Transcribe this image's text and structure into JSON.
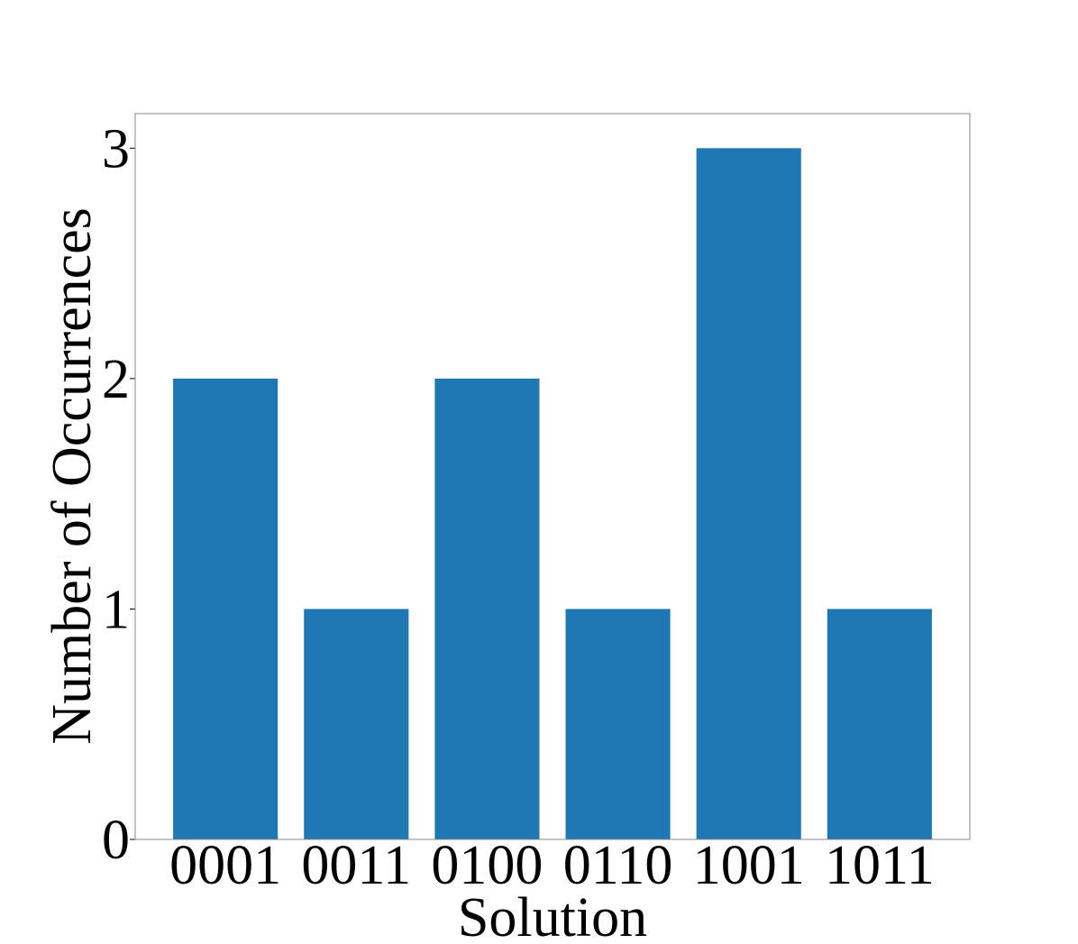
{
  "chart_data": {
    "type": "bar",
    "x_label": "Solution",
    "y_label": "Number of Occurrences",
    "categories": [
      "0001",
      "0011",
      "0100",
      "0110",
      "1001",
      "1011"
    ],
    "values": [
      2,
      1,
      2,
      1,
      3,
      1
    ],
    "color": "#1f77b4",
    "ylim": [
      0,
      3.15
    ],
    "yticks": [
      0,
      1,
      2,
      3
    ],
    "grid": false
  }
}
